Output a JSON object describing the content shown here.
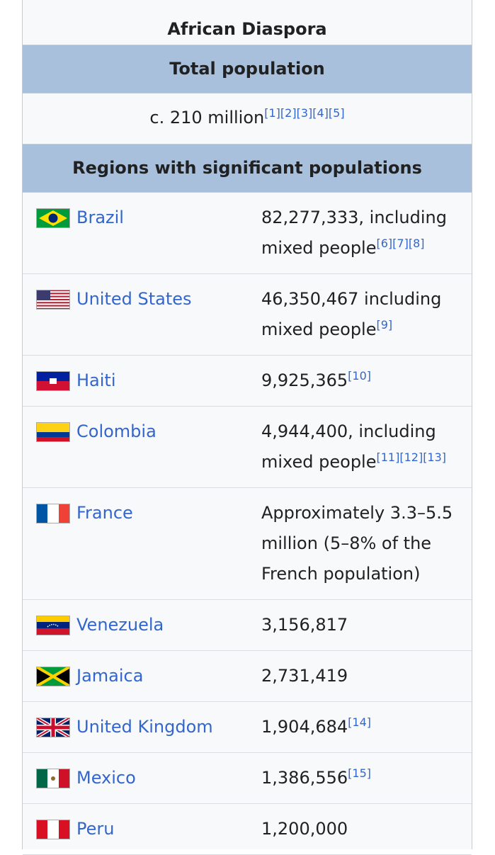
{
  "title": "African Diaspora",
  "total_header": "Total population",
  "total": {
    "value": "c. 210 million",
    "refs": [
      "[1]",
      "[2]",
      "[3]",
      "[4]",
      "[5]"
    ]
  },
  "regions_header": "Regions with significant populations",
  "regions": [
    {
      "country": "Brazil",
      "value": "82,277,333, including mixed people",
      "refs": [
        "[6]",
        "[7]",
        "[8]"
      ]
    },
    {
      "country": "United States",
      "value": "46,350,467 including mixed people",
      "refs": [
        "[9]"
      ]
    },
    {
      "country": "Haiti",
      "value": "9,925,365",
      "refs": [
        "[10]"
      ]
    },
    {
      "country": "Colombia",
      "value": "4,944,400, including mixed people",
      "refs": [
        "[11]",
        "[12]",
        "[13]"
      ]
    },
    {
      "country": "France",
      "value": "Approximately 3.3–5.5 million (5–8% of the French population)",
      "refs": []
    },
    {
      "country": "Venezuela",
      "value": "3,156,817",
      "refs": []
    },
    {
      "country": "Jamaica",
      "value": "2,731,419",
      "refs": []
    },
    {
      "country": "United Kingdom",
      "value": "1,904,684",
      "refs": [
        "[14]"
      ]
    },
    {
      "country": "Mexico",
      "value": "1,386,556",
      "refs": [
        "[15]"
      ]
    },
    {
      "country": "Peru",
      "value": "1,200,000",
      "refs": []
    }
  ]
}
